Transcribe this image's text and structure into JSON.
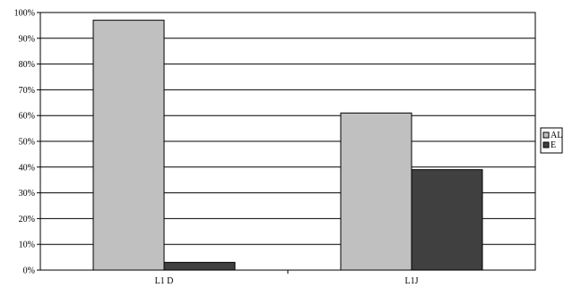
{
  "chart_data": {
    "type": "bar",
    "title": "",
    "xlabel": "",
    "ylabel": "",
    "categories": [
      "L1 D",
      "L1J"
    ],
    "series": [
      {
        "name": "AL",
        "values": [
          97,
          61
        ],
        "color": "#c0c0c0"
      },
      {
        "name": "E",
        "values": [
          3,
          39
        ],
        "color": "#404040"
      }
    ],
    "ylim": [
      0,
      100
    ],
    "yticks": [
      0,
      10,
      20,
      30,
      40,
      50,
      60,
      70,
      80,
      90,
      100
    ],
    "ytick_labels": [
      "0%",
      "10%",
      "20%",
      "30%",
      "40%",
      "50%",
      "60%",
      "70%",
      "80%",
      "90%",
      "100%"
    ],
    "grid": true,
    "legend_position": "right"
  }
}
